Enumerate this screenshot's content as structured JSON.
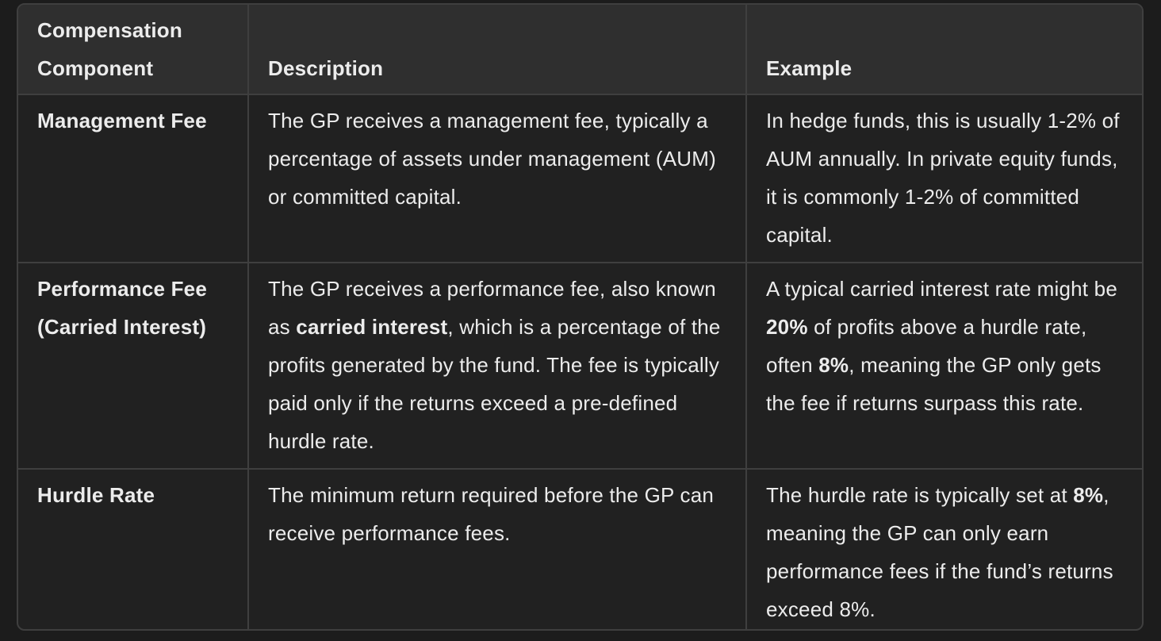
{
  "table": {
    "headers": [
      "Compensation Component",
      "Description",
      "Example"
    ],
    "rows": [
      {
        "component": "Management Fee",
        "description": {
          "text": "The GP receives a management fee, typically a percentage of assets under management (AUM) or committed capital."
        },
        "example": {
          "text": "In hedge funds, this is usually 1-2% of AUM annually. In private equity funds, it is commonly 1-2% of committed capital."
        }
      },
      {
        "component": "Performance Fee (Carried Interest)",
        "description": {
          "before": "The GP receives a performance fee, also known as ",
          "bold": "carried interest",
          "after": ", which is a percentage of the profits generated by the fund. The fee is typically paid only if the returns exceed a pre-defined hurdle rate."
        },
        "example": {
          "before": "A typical carried interest rate might be ",
          "bold1": "20%",
          "middle": " of profits above a hurdle rate, often ",
          "bold2": "8%",
          "after": ", meaning the GP only gets the fee if returns surpass this rate."
        }
      },
      {
        "component": "Hurdle Rate",
        "description": {
          "text": "The minimum return required before the GP can receive performance fees."
        },
        "example": {
          "before": "The hurdle rate is typically set at ",
          "bold": "8%",
          "after": ", meaning the GP can only earn performance fees if the fund’s returns exceed 8%."
        }
      }
    ]
  }
}
